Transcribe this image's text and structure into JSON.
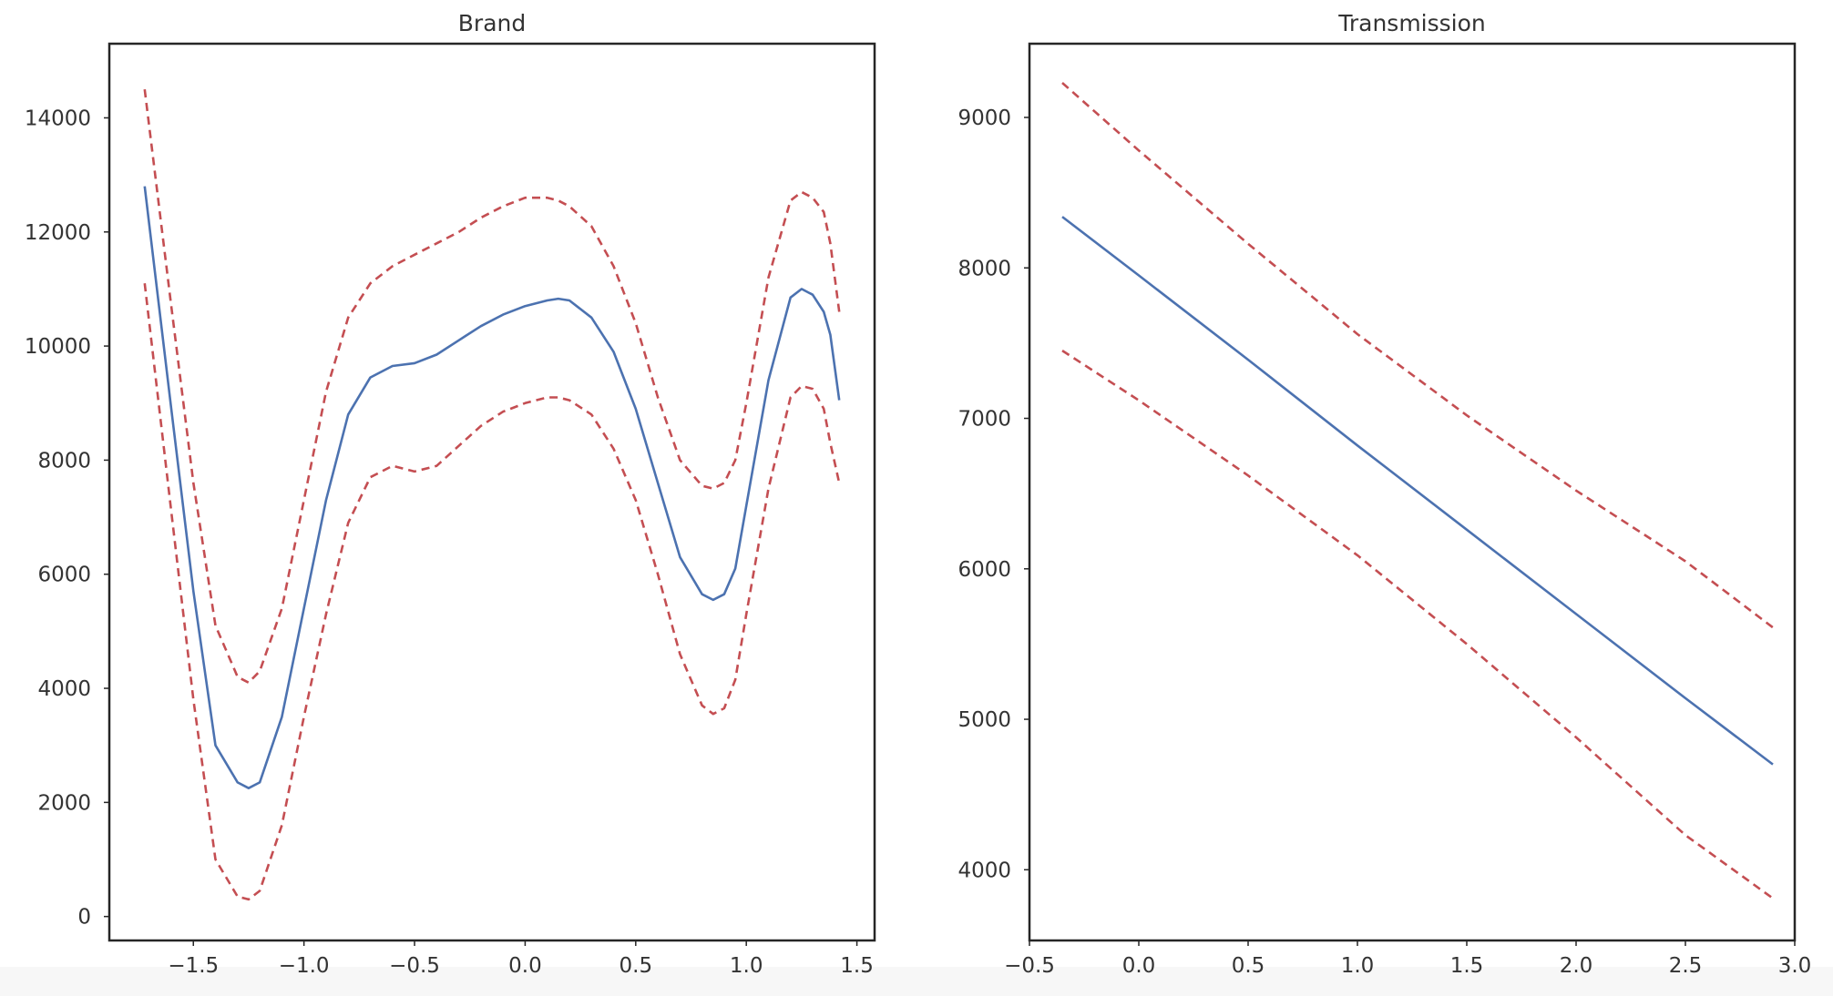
{
  "chart_data": [
    {
      "type": "line",
      "title": "Brand",
      "xlabel": "",
      "ylabel": "",
      "xlim": [
        -1.88,
        1.58
      ],
      "ylim": [
        -420,
        15300
      ],
      "xticks": [
        "−1.5",
        "−1.0",
        "−0.5",
        "0.0",
        "0.5",
        "1.0",
        "1.5"
      ],
      "xtick_values": [
        -1.5,
        -1.0,
        -0.5,
        0.0,
        0.5,
        1.0,
        1.5
      ],
      "yticks": [
        "0",
        "2000",
        "4000",
        "6000",
        "8000",
        "10000",
        "12000",
        "14000"
      ],
      "ytick_values": [
        0,
        2000,
        4000,
        6000,
        8000,
        10000,
        12000,
        14000
      ],
      "grid": false,
      "x": [
        -1.72,
        -1.6,
        -1.5,
        -1.4,
        -1.3,
        -1.25,
        -1.2,
        -1.1,
        -1.0,
        -0.9,
        -0.8,
        -0.7,
        -0.6,
        -0.5,
        -0.4,
        -0.3,
        -0.2,
        -0.1,
        0.0,
        0.1,
        0.15,
        0.2,
        0.3,
        0.4,
        0.5,
        0.6,
        0.7,
        0.8,
        0.85,
        0.9,
        0.95,
        1.0,
        1.1,
        1.2,
        1.25,
        1.3,
        1.35,
        1.38,
        1.42
      ],
      "series": [
        {
          "role": "estimate",
          "color": "#4c72b0",
          "style": "solid",
          "values": [
            12800,
            8900,
            5700,
            3000,
            2350,
            2250,
            2350,
            3500,
            5400,
            7300,
            8800,
            9450,
            9650,
            9700,
            9850,
            10100,
            10350,
            10550,
            10700,
            10800,
            10830,
            10800,
            10500,
            9900,
            8900,
            7600,
            6300,
            5650,
            5550,
            5650,
            6100,
            7200,
            9400,
            10850,
            11000,
            10900,
            10600,
            10200,
            9050
          ]
        },
        {
          "role": "upper",
          "color": "#c44e52",
          "style": "dashed",
          "values": [
            14500,
            10700,
            7600,
            5100,
            4200,
            4100,
            4300,
            5400,
            7300,
            9200,
            10500,
            11100,
            11400,
            11600,
            11800,
            12000,
            12250,
            12450,
            12600,
            12600,
            12550,
            12450,
            12100,
            11400,
            10400,
            9100,
            8000,
            7550,
            7500,
            7600,
            8000,
            9000,
            11200,
            12550,
            12700,
            12600,
            12350,
            11800,
            10600
          ]
        },
        {
          "role": "lower",
          "color": "#c44e52",
          "style": "dashed",
          "values": [
            11100,
            7100,
            3800,
            1000,
            350,
            300,
            450,
            1600,
            3500,
            5300,
            6900,
            7700,
            7900,
            7800,
            7900,
            8250,
            8600,
            8850,
            9000,
            9100,
            9100,
            9050,
            8800,
            8200,
            7300,
            6000,
            4600,
            3700,
            3550,
            3650,
            4150,
            5300,
            7500,
            9100,
            9300,
            9250,
            8900,
            8300,
            7600
          ]
        }
      ]
    },
    {
      "type": "line",
      "title": "Transmission",
      "xlabel": "",
      "ylabel": "",
      "xlim": [
        -0.5,
        3.0
      ],
      "ylim": [
        3530,
        9490
      ],
      "xticks": [
        "−0.5",
        "0.0",
        "0.5",
        "1.0",
        "1.5",
        "2.0",
        "2.5",
        "3.0"
      ],
      "xtick_values": [
        -0.5,
        0.0,
        0.5,
        1.0,
        1.5,
        2.0,
        2.5,
        3.0
      ],
      "yticks": [
        "4000",
        "5000",
        "6000",
        "7000",
        "8000",
        "9000"
      ],
      "ytick_values": [
        4000,
        5000,
        6000,
        7000,
        8000,
        9000
      ],
      "grid": false,
      "x": [
        -0.35,
        0.0,
        0.5,
        1.0,
        1.5,
        2.0,
        2.5,
        2.9
      ],
      "series": [
        {
          "role": "estimate",
          "color": "#4c72b0",
          "style": "solid",
          "values": [
            8340,
            7950,
            7390,
            6820,
            6260,
            5700,
            5140,
            4700
          ]
        },
        {
          "role": "upper",
          "color": "#c44e52",
          "style": "dashed",
          "values": [
            9230,
            8780,
            8160,
            7560,
            7020,
            6520,
            6050,
            5610
          ]
        },
        {
          "role": "lower",
          "color": "#c44e52",
          "style": "dashed",
          "values": [
            7450,
            7120,
            6620,
            6090,
            5500,
            4880,
            4230,
            3810
          ]
        }
      ]
    }
  ]
}
